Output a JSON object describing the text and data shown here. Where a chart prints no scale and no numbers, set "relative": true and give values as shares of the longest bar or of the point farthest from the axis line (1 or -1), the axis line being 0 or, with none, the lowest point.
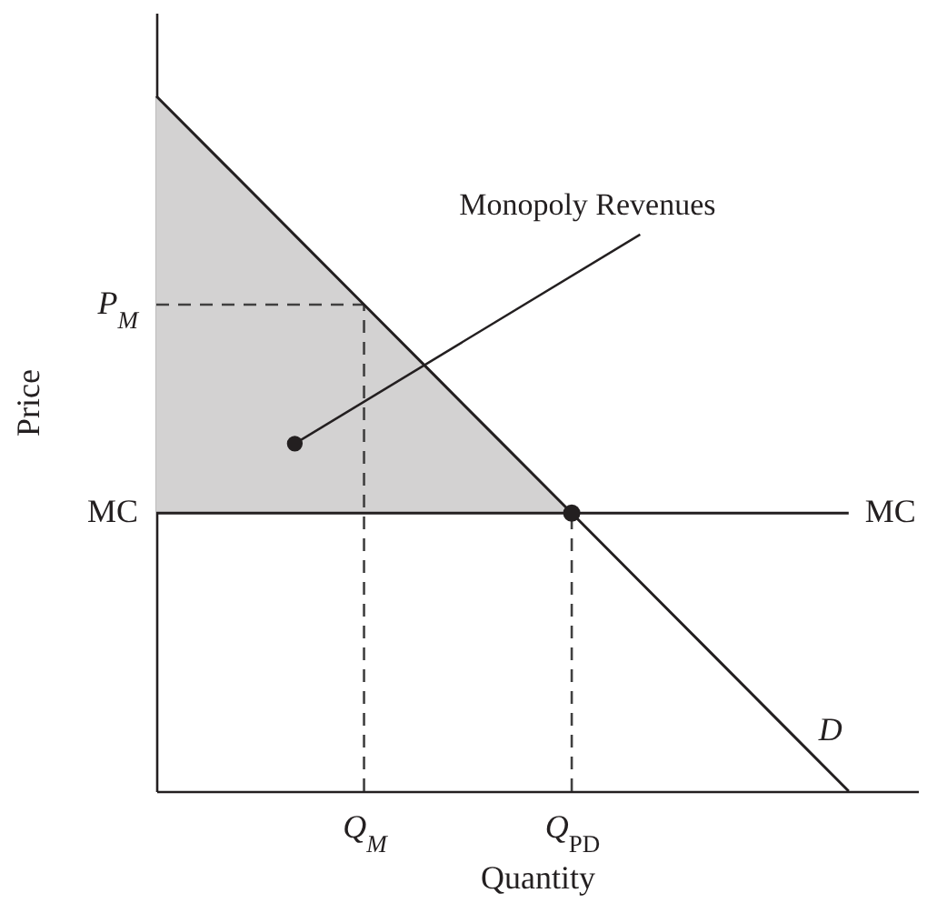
{
  "chart_data": {
    "type": "line",
    "relative": true,
    "xlabel": "Quantity",
    "ylabel": "Price",
    "categories": [
      null,
      null,
      null,
      "Q$_{M}$",
      null,
      null,
      "Q$_{PD}$",
      null,
      null,
      null,
      null
    ],
    "series": [
      {
        "name": "P$_{M}$",
        "line_style": "dashed",
        "color": "#404040",
        "values": [
          0.7,
          0.7,
          0.7,
          0.7,
          null,
          null,
          null,
          null,
          null,
          null,
          null
        ]
      },
      {
        "line_style": "dashed",
        "color": "#404040",
        "x": [
          "Q$_{M}$",
          "Q$_{M}$"
        ],
        "values": [
          0,
          0.7
        ]
      },
      {
        "line_style": "dashed",
        "color": "#404040",
        "x": [
          "Q$_{PD}$",
          "Q$_{PD}$"
        ],
        "values": [
          0,
          0.4
        ]
      },
      {
        "name": "D",
        "color": "#231f20",
        "values": [
          1,
          0.9,
          0.8,
          0.7,
          0.6,
          0.5,
          0.4,
          0.3,
          0.2,
          0.1,
          0
        ],
        "lower": [
          0.4,
          0.4,
          0.4,
          0.4,
          0.4,
          0.4,
          0.4,
          null,
          null,
          null,
          null
        ],
        "upper": [
          1,
          0.9,
          0.8,
          0.7,
          0.6,
          0.5,
          0.4,
          null,
          null,
          null,
          null
        ]
      },
      {
        "name": "MC",
        "color": "#231f20",
        "values": [
          0.4,
          0.4,
          0.4,
          0.4,
          0.4,
          0.4,
          0.4,
          0.4,
          0.4,
          0.4,
          0.4
        ]
      },
      {
        "type": "scatter",
        "marker": "circle",
        "color": "#231f20",
        "values": [
          null,
          null,
          null,
          null,
          null,
          null,
          0.4,
          null,
          null,
          null,
          null
        ]
      }
    ],
    "annotations": [
      "Monopoly Revenues"
    ]
  }
}
